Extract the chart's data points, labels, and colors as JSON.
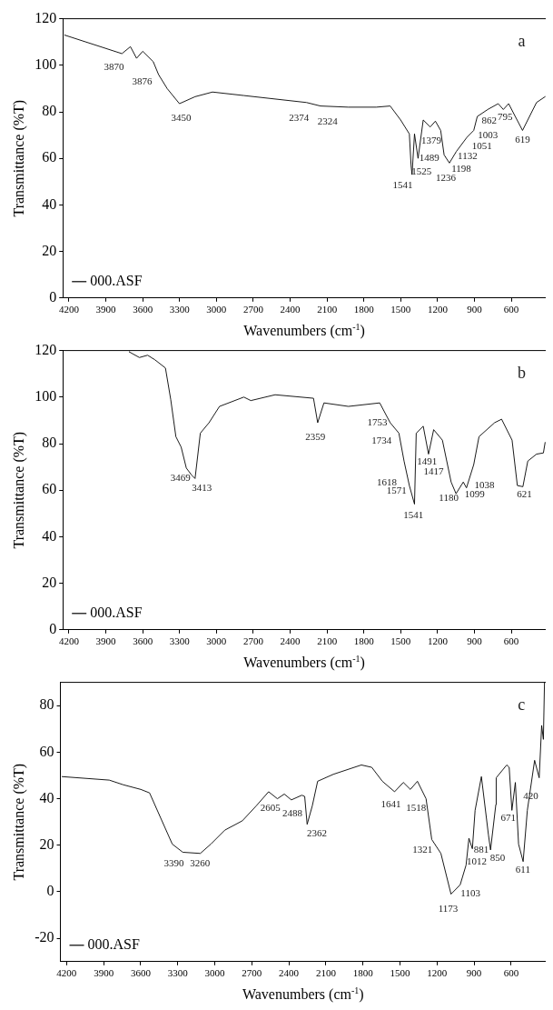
{
  "chart_data": [
    {
      "type": "line",
      "xlabel": "Wavenumbers (cm$^{-1}$)",
      "ylabel": "Transmittance (%T)",
      "xlim": [
        4250,
        320
      ],
      "ylim": [
        0,
        120
      ],
      "xticks": [
        4200,
        3900,
        3600,
        3300,
        3000,
        2700,
        2400,
        2100,
        1800,
        1500,
        1200,
        900,
        600
      ],
      "yticks": [
        0,
        20,
        40,
        60,
        80,
        100,
        120
      ],
      "legend": "bottom left",
      "annotations": [
        "a",
        "3870",
        "3876",
        "3450",
        "2374",
        "2324",
        "1379",
        "1489",
        "1525",
        "1541",
        "1236",
        "1198",
        "1132",
        "1051",
        "1003",
        "862",
        "795",
        "619"
      ],
      "series": [
        {
          "name": "000.ASF",
          "color": "#000000",
          "x": [
            4237,
            3769,
            3700,
            3650,
            3600,
            3514,
            3471,
            3401,
            3301,
            3174,
            3032,
            2777,
            2267,
            2153,
            1926,
            1700,
            1586,
            1501,
            1430,
            1416,
            1408,
            1388,
            1359,
            1317,
            1260,
            1218,
            1175,
            1147,
            1104,
            1047,
            962,
            906,
            877,
            792,
            707,
            665,
            622,
            509,
            395,
            325
          ],
          "values": [
            113,
            105,
            108,
            103,
            106,
            101.5,
            96,
            90,
            83.5,
            86.5,
            88.5,
            87,
            84,
            82.5,
            82,
            82,
            82.5,
            76.5,
            70.5,
            57,
            53,
            70.5,
            60,
            76.5,
            73.5,
            76,
            72,
            61.5,
            58,
            63,
            69,
            72,
            78,
            81,
            83.5,
            81,
            83.5,
            72,
            84,
            86.5
          ]
        }
      ]
    },
    {
      "type": "line",
      "xlabel": "Wavenumbers (cm$^{-1}$)",
      "ylabel": "Transmittance (%T)",
      "xlim": [
        4250,
        320
      ],
      "ylim": [
        0,
        120
      ],
      "xticks": [
        4200,
        3900,
        3600,
        3300,
        3000,
        2700,
        2400,
        2100,
        1800,
        1500,
        1200,
        900,
        600
      ],
      "yticks": [
        0,
        20,
        40,
        60,
        80,
        100,
        120
      ],
      "legend": "bottom left",
      "annotations": [
        "b",
        "3469",
        "3413",
        "2359",
        "1753",
        "1734",
        "1618",
        "1571",
        "1541",
        "1491",
        "1417",
        "1180",
        "1099",
        "1038",
        "621"
      ],
      "series": [
        {
          "name": "000.ASF",
          "color": "#000000",
          "x": [
            3712,
            3627,
            3560,
            3500,
            3415,
            3372,
            3330,
            3287,
            3245,
            3202,
            3174,
            3131,
            3060,
            2975,
            2777,
            2720,
            2522,
            2210,
            2176,
            2125,
            1926,
            1671,
            1586,
            1515,
            1473,
            1430,
            1388,
            1374,
            1317,
            1274,
            1232,
            1161,
            1090,
            1050,
            991,
            965,
            906,
            863,
            736,
            679,
            594,
            551,
            506,
            466,
            395,
            339,
            325
          ],
          "values": [
            119.5,
            117,
            118,
            116,
            112.5,
            99,
            83,
            78.5,
            69.5,
            66.5,
            65,
            84.5,
            89,
            96,
            100,
            98.5,
            101,
            99.5,
            89,
            97.5,
            96,
            97.5,
            89,
            84.5,
            72.5,
            62,
            54,
            84.5,
            87.5,
            75.5,
            86,
            81.5,
            63.5,
            58.5,
            63.5,
            61,
            71,
            83,
            89,
            90.5,
            81.5,
            62,
            61.5,
            72.5,
            75.5,
            76,
            80.5
          ]
        }
      ]
    },
    {
      "type": "line",
      "xlabel": "Wavenumbers (cm$^{-1}$)",
      "ylabel": "Transmittance (%T)",
      "xlim": [
        4250,
        320
      ],
      "ylim": [
        -30,
        90
      ],
      "xticks": [
        4200,
        3900,
        3600,
        3300,
        3000,
        2700,
        2400,
        2100,
        1800,
        1500,
        1200,
        900,
        600
      ],
      "yticks": [
        -20,
        0,
        20,
        40,
        60,
        80
      ],
      "legend": "bottom left",
      "annotations": [
        "c",
        "3390",
        "3260",
        "2605",
        "2488",
        "2362",
        "1641",
        "1518",
        "1321",
        "1173",
        "1103",
        "1012",
        "881",
        "850",
        "671",
        "611",
        "420"
      ],
      "series": [
        {
          "name": "000.ASF",
          "color": "#000000",
          "x": [
            4237,
            3854,
            3741,
            3599,
            3528,
            3457,
            3344,
            3259,
            3117,
            3032,
            2919,
            2777,
            2663,
            2564,
            2493,
            2437,
            2380,
            2295,
            2272,
            2252,
            2210,
            2167,
            2040,
            1813,
            1729,
            1643,
            1544,
            1473,
            1416,
            1359,
            1289,
            1243,
            1169,
            1087,
            1013,
            965,
            942,
            914,
            892,
            841,
            784,
            767,
            724,
            721,
            636,
            616,
            594,
            566,
            540,
            503,
            469,
            410,
            373,
            353,
            339,
            330
          ],
          "values": [
            49.5,
            48,
            46,
            44,
            42.5,
            34,
            20.5,
            17,
            16.5,
            20.5,
            26.5,
            30.5,
            37,
            43,
            40,
            42,
            39.5,
            41.5,
            41,
            29,
            37,
            47.5,
            50.5,
            54.5,
            53.5,
            47.5,
            43,
            47,
            44,
            47.5,
            40,
            22.5,
            16.5,
            -1,
            3,
            11.5,
            23,
            18.5,
            35,
            49.5,
            24.5,
            18,
            37.5,
            49,
            54.5,
            53.5,
            35,
            47,
            20.5,
            13,
            35,
            56.5,
            49,
            71.5,
            65.5,
            90
          ]
        }
      ]
    }
  ]
}
